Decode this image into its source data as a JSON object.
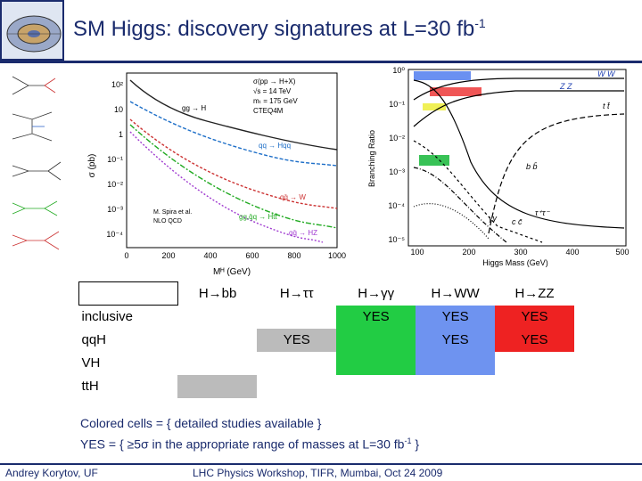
{
  "header": {
    "title_prefix": "SM Higgs: discovery signatures at L=30 fb",
    "title_sup": "-1"
  },
  "xsec_plot": {
    "process_labels": [
      "gg → H",
      "qq → Hqq",
      "qq̄ → W",
      "gg,q̄q → Htt̄",
      "qq̄ → HZ"
    ],
    "legend_lines": [
      "σ(pp → H+X)",
      "√s = 14 TeV",
      "mₜ = 175 GeV",
      "CTEQ4M"
    ],
    "credit_lines": [
      "M. Spira et al.",
      "NLO QCD"
    ],
    "ylabel": "σ (pb)",
    "y_ticks": [
      "10²",
      "10",
      "1",
      "10⁻¹",
      "10⁻²",
      "10⁻³",
      "10⁻⁴"
    ],
    "x_ticks": [
      "0",
      "200",
      "400",
      "600",
      "800",
      "1000"
    ],
    "xlabel": "Mᴴ (GeV)"
  },
  "br_plot": {
    "ylabel": "Branching Ratio",
    "xlabel": "Higgs Mass (GeV)",
    "y_ticks": [
      "10⁰",
      "10⁻¹",
      "10⁻²",
      "10⁻³",
      "10⁻⁴",
      "10⁻⁵"
    ],
    "x_ticks": [
      "100",
      "200",
      "300",
      "400",
      "500"
    ],
    "curve_labels": [
      "W W",
      "Z Z",
      "t t̄",
      "b b̄",
      "τ⁺τ⁻",
      "c c̄",
      "γγ"
    ]
  },
  "table": {
    "columns": [
      "H→bb",
      "H→ττ",
      "H→γγ",
      "H→WW",
      "H→ZZ"
    ],
    "rows": [
      {
        "label": "inclusive",
        "cells": [
          "",
          "",
          "YES",
          "YES",
          "YES"
        ]
      },
      {
        "label": "qqH",
        "cells": [
          "",
          "YES",
          "",
          "YES",
          "YES"
        ]
      },
      {
        "label": "VH",
        "cells": [
          "",
          "",
          "",
          "",
          ""
        ]
      },
      {
        "label": "ttH",
        "cells": [
          "",
          "",
          "",
          "",
          ""
        ]
      }
    ],
    "colors": {
      "green": "#22cc44",
      "blue": "#6e93f0",
      "red": "#ee2222",
      "gray": "#bbbbbb"
    }
  },
  "footnote": {
    "line1": "Colored cells = { detailed studies available }",
    "line2_prefix": "YES = { ≥5σ in the appropriate range of masses at L=30 fb",
    "line2_sup": "-1",
    "line2_suffix": " }"
  },
  "footer": {
    "author": "Andrey Korytov, UF",
    "event": "LHC Physics Workshop, TIFR, Mumbai, Oct 24 2009"
  }
}
